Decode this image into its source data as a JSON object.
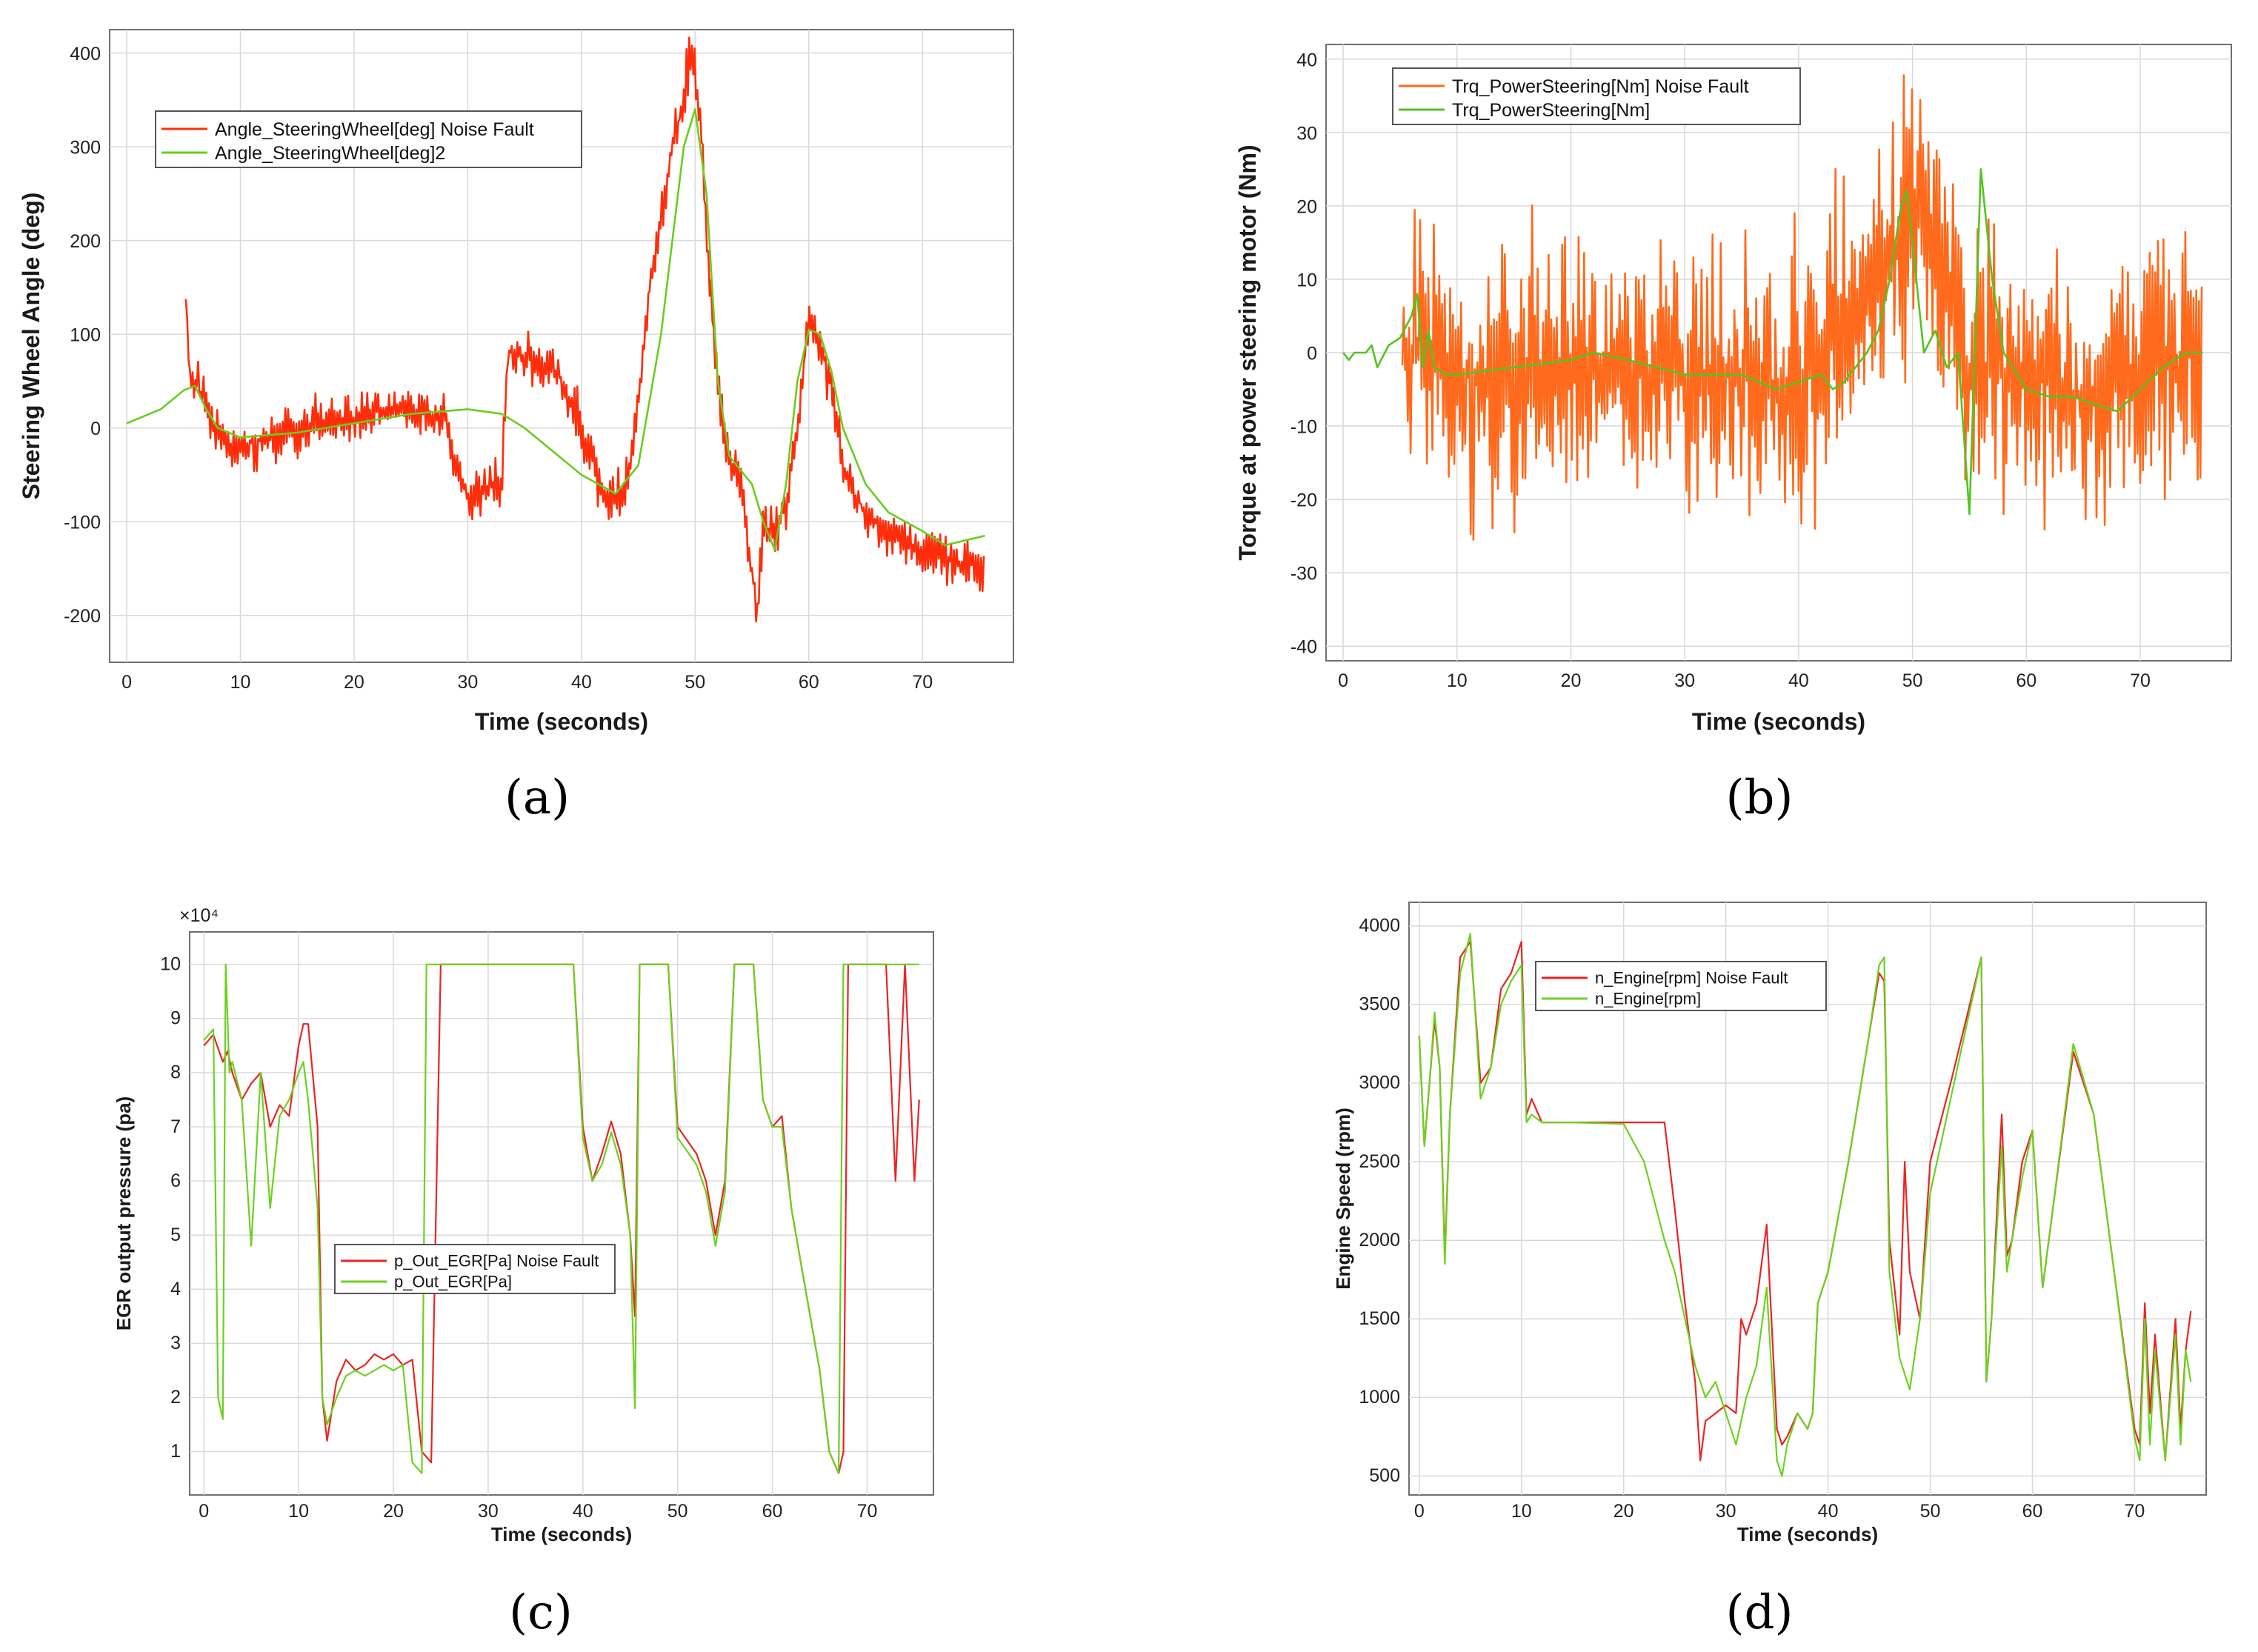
{
  "chart_data": [
    {
      "id": "a",
      "type": "line",
      "caption": "(a)",
      "xlabel": "Time (seconds)",
      "ylabel": "Steering Wheel Angle (deg)",
      "xlim": [
        -1.5,
        78
      ],
      "ylim": [
        -250,
        425
      ],
      "xticks": [
        0,
        10,
        20,
        30,
        40,
        50,
        60,
        70
      ],
      "yticks": [
        -200,
        -100,
        0,
        100,
        200,
        300,
        400
      ],
      "exponent": "",
      "legend_position": "upper-left",
      "series": [
        {
          "name": "Angle_SteeringWheel[deg] Noise Fault",
          "color": "#ff2d0a",
          "noise": 35,
          "x": [
            5.2,
            5.5,
            6,
            7,
            8,
            9,
            10,
            12,
            15,
            18,
            20,
            22,
            25,
            28,
            29,
            30,
            31,
            32,
            33,
            33.5,
            34,
            36,
            38,
            40,
            42,
            43,
            44,
            45,
            46,
            47,
            48,
            49,
            49.5,
            50,
            50.5,
            51,
            52,
            53,
            54,
            55,
            55.5,
            56,
            57,
            58,
            59,
            60,
            61,
            62,
            63,
            64,
            65,
            66,
            67,
            68,
            70,
            72,
            74,
            75.5
          ],
          "y": [
            140,
            60,
            50,
            20,
            -10,
            -20,
            -20,
            -10,
            0,
            10,
            10,
            20,
            20,
            10,
            -50,
            -70,
            -70,
            -60,
            -60,
            80,
            80,
            70,
            60,
            0,
            -70,
            -80,
            -60,
            30,
            150,
            220,
            300,
            350,
            400,
            380,
            320,
            200,
            40,
            -40,
            -60,
            -150,
            -200,
            -100,
            -120,
            -80,
            0,
            120,
            90,
            40,
            -40,
            -70,
            -90,
            -100,
            -110,
            -120,
            -130,
            -140,
            -145,
            -150
          ]
        },
        {
          "name": "Angle_SteeringWheel[deg]2",
          "color": "#6bcd1c",
          "noise": 0,
          "x": [
            0,
            1,
            2,
            3,
            4,
            5,
            6,
            7,
            8,
            10,
            15,
            20,
            25,
            30,
            33,
            35,
            37,
            40,
            43,
            45,
            47,
            48,
            49,
            50,
            51,
            52,
            53,
            55,
            56,
            57,
            58,
            59,
            60,
            61,
            62,
            63,
            65,
            67,
            70,
            72,
            75.5
          ],
          "y": [
            5,
            10,
            15,
            20,
            30,
            40,
            45,
            20,
            0,
            -10,
            -5,
            5,
            15,
            20,
            15,
            0,
            -20,
            -50,
            -70,
            -40,
            100,
            200,
            300,
            340,
            250,
            50,
            -30,
            -60,
            -100,
            -130,
            -60,
            50,
            105,
            100,
            60,
            0,
            -60,
            -90,
            -110,
            -125,
            -115
          ]
        }
      ]
    },
    {
      "id": "b",
      "type": "line",
      "caption": "(b)",
      "xlabel": "Time (seconds)",
      "ylabel": "Torque at power steering motor (Nm)",
      "xlim": [
        -1.5,
        78
      ],
      "ylim": [
        -42,
        42
      ],
      "xticks": [
        0,
        10,
        20,
        30,
        40,
        50,
        60,
        70
      ],
      "yticks": [
        -40,
        -30,
        -20,
        -10,
        0,
        10,
        20,
        30,
        40
      ],
      "exponent": "",
      "legend_position": "upper-left",
      "series": [
        {
          "name": "Trq_PowerSteering[Nm] Noise Fault",
          "color": "#ff6a1c",
          "noise": 24,
          "x": [
            5.2,
            10,
            20,
            30,
            40,
            48,
            50,
            55,
            60,
            65,
            70,
            75.5
          ],
          "y": [
            0,
            -3,
            -1,
            -3,
            -4,
            12,
            20,
            -2,
            -3,
            -6,
            -2,
            0
          ]
        },
        {
          "name": "Trq_PowerSteering[Nm]",
          "color": "#53c41f",
          "noise": 0,
          "x": [
            0,
            0.5,
            1,
            2,
            2.5,
            3,
            4,
            5,
            6,
            6.5,
            7,
            7.5,
            8,
            9,
            10,
            15,
            20,
            22,
            25,
            30,
            33,
            35,
            38,
            40,
            42,
            43,
            44,
            45,
            46,
            47,
            48,
            49,
            49.5,
            50,
            51,
            52,
            53,
            54,
            55,
            56,
            57,
            58,
            60,
            62,
            64,
            66,
            68,
            70,
            72,
            74,
            75.5
          ],
          "y": [
            0,
            -1,
            0,
            0,
            1,
            -2,
            1,
            2,
            5,
            8,
            -2,
            3,
            -2,
            -3,
            -3,
            -2,
            -1,
            0,
            -1,
            -3,
            -3,
            -3,
            -5,
            -4,
            -3,
            -5,
            -4,
            -2,
            0,
            3,
            10,
            20,
            22,
            15,
            0,
            3,
            -2,
            0,
            -22,
            25,
            10,
            0,
            -5,
            -6,
            -6,
            -7,
            -8,
            -5,
            -2,
            0,
            0
          ]
        }
      ]
    },
    {
      "id": "c",
      "type": "line",
      "caption": "(c)",
      "xlabel": "Time (seconds)",
      "ylabel": "EGR output pressure (pa)",
      "xlim": [
        -1.5,
        77
      ],
      "ylim": [
        0.2,
        10.6
      ],
      "xticks": [
        0,
        10,
        20,
        30,
        40,
        50,
        60,
        70
      ],
      "yticks": [
        1,
        2,
        3,
        4,
        5,
        6,
        7,
        8,
        9,
        10
      ],
      "exponent": "×10⁴",
      "legend_position": "center",
      "series": [
        {
          "name": "p_Out_EGR[Pa] Noise Fault",
          "color": "#ea2424",
          "noise": 0,
          "x": [
            0,
            1,
            2,
            2.5,
            3,
            4,
            5,
            6,
            7,
            8,
            9,
            10,
            10.5,
            11,
            12,
            12.5,
            13,
            14,
            15,
            16,
            17,
            18,
            19,
            20,
            21,
            22,
            23,
            24,
            25,
            30,
            32,
            33,
            35,
            39,
            40,
            41,
            42,
            43,
            44,
            45,
            45.5,
            46,
            47,
            48,
            49,
            50,
            52,
            53,
            54,
            55,
            56,
            57,
            58,
            59,
            60,
            61,
            62,
            63,
            64,
            65,
            66,
            67,
            67.5,
            68,
            70,
            72,
            73,
            74,
            75,
            75.5
          ],
          "y": [
            8.5,
            8.7,
            8.2,
            8.4,
            8.0,
            7.5,
            7.8,
            8.0,
            7.0,
            7.4,
            7.2,
            8.5,
            8.9,
            8.9,
            7.0,
            2.0,
            1.2,
            2.3,
            2.7,
            2.5,
            2.6,
            2.8,
            2.7,
            2.8,
            2.6,
            2.7,
            1.0,
            0.8,
            10,
            10,
            10,
            10,
            10,
            10,
            7.0,
            6.0,
            6.5,
            7.1,
            6.5,
            5.0,
            3.5,
            10,
            10,
            10,
            10,
            7.0,
            6.5,
            6.0,
            5.0,
            6.0,
            10,
            10,
            10,
            7.5,
            7.0,
            7.2,
            5.5,
            4.5,
            3.5,
            2.5,
            1.0,
            0.6,
            1.0,
            10,
            10,
            10,
            6.0,
            10,
            6.0,
            7.5
          ]
        },
        {
          "name": "p_Out_EGR[Pa]",
          "color": "#6cd11f",
          "noise": 0,
          "x": [
            0,
            1,
            1.5,
            2,
            2.3,
            2.7,
            3,
            4,
            5,
            6,
            7,
            8,
            9,
            10,
            10.5,
            11,
            12,
            12.5,
            13,
            14,
            15,
            16,
            17,
            18,
            19,
            20,
            21,
            22,
            23,
            23.5,
            24,
            30,
            35,
            39,
            40,
            41,
            42,
            43,
            44,
            45,
            45.5,
            46,
            47,
            48,
            49,
            50,
            52,
            53,
            54,
            55,
            56,
            57,
            58,
            59,
            60,
            61,
            62,
            63,
            64,
            65,
            66,
            67,
            67.5,
            68,
            70,
            72,
            73,
            74,
            75,
            75.5
          ],
          "y": [
            8.6,
            8.8,
            2.0,
            1.6,
            10,
            8.0,
            8.2,
            7.5,
            4.8,
            8.0,
            5.5,
            7.2,
            7.5,
            8.0,
            8.2,
            7.5,
            5.5,
            2.0,
            1.5,
            2.0,
            2.4,
            2.5,
            2.4,
            2.5,
            2.6,
            2.5,
            2.6,
            0.8,
            0.6,
            10,
            10,
            10,
            10,
            10,
            6.8,
            6.0,
            6.3,
            6.9,
            6.3,
            5.0,
            1.8,
            10,
            10,
            10,
            10,
            6.8,
            6.3,
            5.8,
            4.8,
            5.8,
            10,
            10,
            10,
            7.5,
            7.0,
            7.0,
            5.5,
            4.5,
            3.5,
            2.5,
            1.0,
            0.6,
            10,
            10,
            10,
            10,
            10,
            10,
            10,
            10
          ]
        }
      ]
    },
    {
      "id": "d",
      "type": "line",
      "caption": "(d)",
      "xlabel": "Time (seconds)",
      "ylabel": "Engine Speed (rpm)",
      "xlim": [
        -1,
        77
      ],
      "ylim": [
        380,
        4150
      ],
      "xticks": [
        0,
        10,
        20,
        30,
        40,
        50,
        60,
        70
      ],
      "yticks": [
        500,
        1000,
        1500,
        2000,
        2500,
        3000,
        3500,
        4000
      ],
      "exponent": "",
      "legend_position": "upper-center",
      "series": [
        {
          "name": "n_Engine[rpm] Noise Fault",
          "color": "#ea2424",
          "noise": 0,
          "x": [
            0,
            0.5,
            1,
            1.5,
            2,
            2.5,
            3,
            4,
            5,
            6,
            7,
            8,
            9,
            9.5,
            10,
            10.5,
            11,
            12,
            15,
            20,
            24,
            25,
            26,
            27,
            27.5,
            28,
            29,
            30,
            31,
            31.5,
            32,
            33,
            34,
            35,
            35.5,
            36,
            37,
            38,
            38.5,
            39,
            40,
            42,
            44,
            45,
            45.5,
            46,
            47,
            47.5,
            48,
            49,
            50,
            52,
            55,
            55.5,
            56,
            57,
            57.5,
            58,
            59,
            60,
            61,
            62,
            64,
            66,
            68,
            70,
            70.5,
            71,
            71.5,
            72,
            73,
            74,
            74.5,
            75,
            75.5
          ],
          "y": [
            3300,
            2600,
            3000,
            3400,
            3100,
            1900,
            2800,
            3800,
            3900,
            3000,
            3100,
            3600,
            3700,
            3800,
            3900,
            2800,
            2900,
            2750,
            2750,
            2750,
            2750,
            2200,
            1600,
            1100,
            600,
            850,
            900,
            950,
            900,
            1500,
            1400,
            1600,
            2100,
            800,
            700,
            750,
            900,
            800,
            900,
            1600,
            1800,
            2500,
            3300,
            3700,
            3650,
            2000,
            1400,
            2500,
            1800,
            1500,
            2500,
            3000,
            3800,
            1100,
            1500,
            2800,
            1900,
            2000,
            2500,
            2700,
            1700,
            2200,
            3200,
            2800,
            1800,
            800,
            700,
            1600,
            900,
            1400,
            600,
            1500,
            800,
            1300,
            1550
          ]
        },
        {
          "name": "n_Engine[rpm]",
          "color": "#6cd11f",
          "noise": 0,
          "x": [
            0,
            0.5,
            1,
            1.5,
            2,
            2.5,
            3,
            4,
            5,
            6,
            7,
            8,
            9,
            9.5,
            10,
            10.5,
            11,
            12,
            15,
            20,
            22,
            24,
            25,
            26,
            27,
            28,
            29,
            30,
            31,
            32,
            33,
            34,
            35,
            35.5,
            36,
            37,
            38,
            38.5,
            39,
            40,
            42,
            44,
            45,
            45.5,
            46,
            47,
            48,
            49,
            50,
            52,
            55,
            55.5,
            56,
            57,
            57.5,
            58,
            59,
            60,
            61,
            62,
            64,
            66,
            68,
            70,
            70.5,
            71,
            71.5,
            72,
            73,
            74,
            74.5,
            75,
            75.5
          ],
          "y": [
            3300,
            2600,
            3000,
            3450,
            3100,
            1850,
            2800,
            3700,
            3950,
            2900,
            3100,
            3500,
            3650,
            3700,
            3750,
            2750,
            2800,
            2750,
            2750,
            2740,
            2500,
            2000,
            1800,
            1500,
            1200,
            1000,
            1100,
            900,
            700,
            1000,
            1200,
            1700,
            600,
            500,
            700,
            900,
            800,
            900,
            1600,
            1800,
            2500,
            3300,
            3750,
            3800,
            1800,
            1250,
            1050,
            1500,
            2300,
            2900,
            3800,
            1100,
            1500,
            2600,
            1800,
            2000,
            2400,
            2700,
            1700,
            2200,
            3250,
            2800,
            1800,
            750,
            600,
            1500,
            700,
            1300,
            600,
            1400,
            700,
            1300,
            1100
          ]
        }
      ]
    }
  ]
}
